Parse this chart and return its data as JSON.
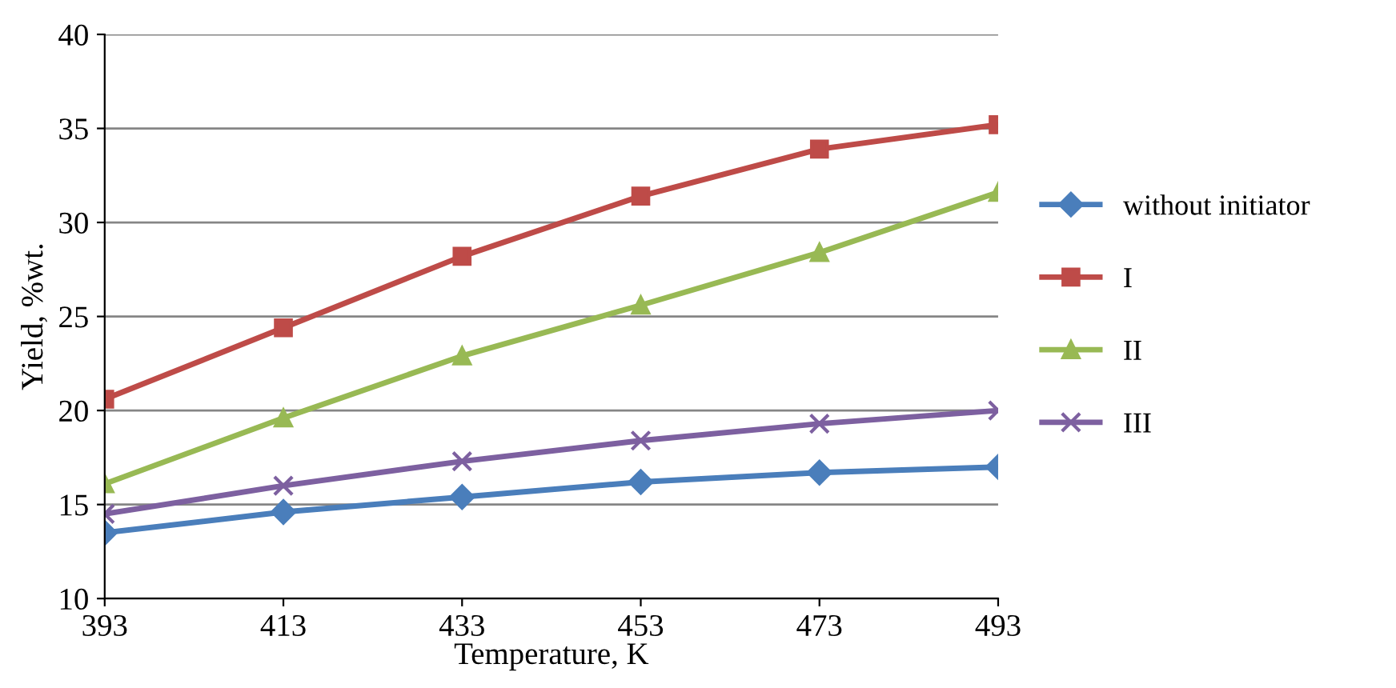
{
  "chart_data": {
    "type": "line",
    "xlabel": "Temperature, K",
    "ylabel": "Yield, %wt.",
    "x": [
      393,
      413,
      433,
      453,
      473,
      493
    ],
    "xlim": [
      393,
      493
    ],
    "xticks": [
      393,
      413,
      433,
      453,
      473,
      493
    ],
    "ylim": [
      10,
      40
    ],
    "yticks": [
      10,
      15,
      20,
      25,
      30,
      35,
      40
    ],
    "grid": "y",
    "legend": "right",
    "series": [
      {
        "name": "without initiator",
        "color": "#4a7ebb",
        "marker": "diamond",
        "values": [
          13.5,
          14.6,
          15.4,
          16.2,
          16.7,
          17.0
        ]
      },
      {
        "name": "I",
        "color": "#be4b48",
        "marker": "square",
        "values": [
          20.6,
          24.4,
          28.2,
          31.4,
          33.9,
          35.2
        ]
      },
      {
        "name": "II",
        "color": "#98b954",
        "marker": "triangle",
        "values": [
          16.1,
          19.6,
          22.9,
          25.6,
          28.4,
          31.6
        ]
      },
      {
        "name": "III",
        "color": "#7d60a0",
        "marker": "cross",
        "values": [
          14.5,
          16.0,
          17.3,
          18.4,
          19.3,
          20.0
        ]
      }
    ]
  }
}
